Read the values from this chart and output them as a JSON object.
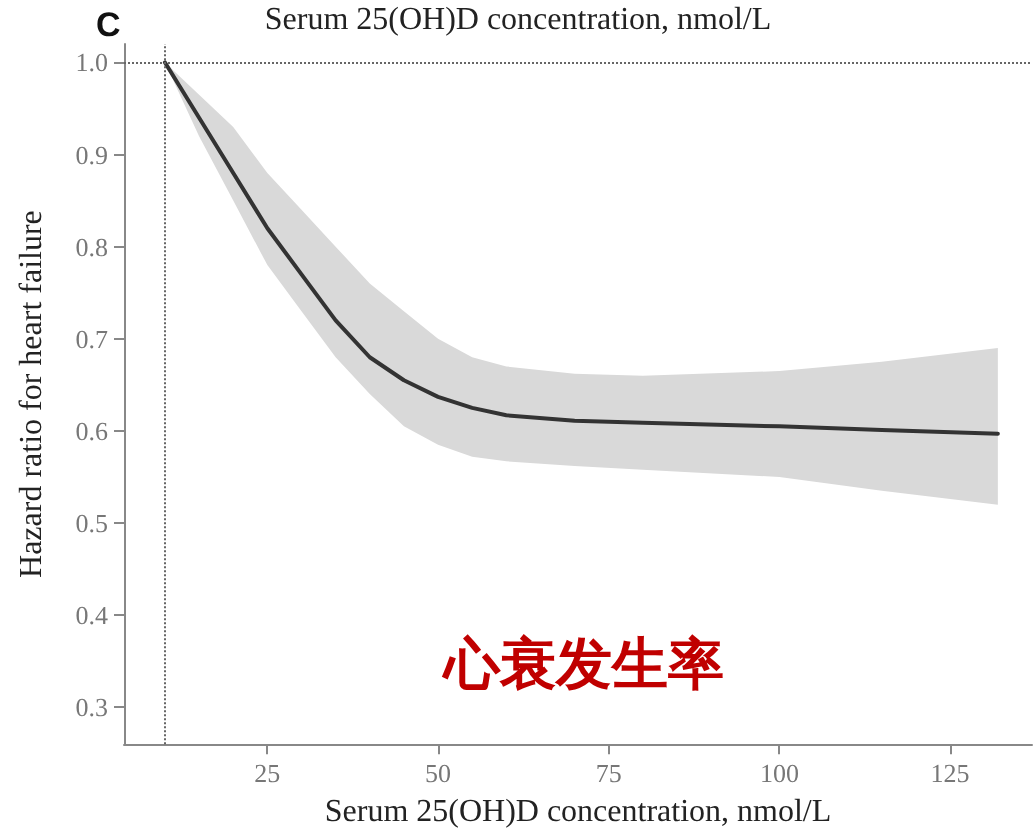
{
  "chart_data": {
    "type": "line",
    "xlabel": "Serum 25(OH)D concentration, nmol/L",
    "ylabel": "Hazard ratio for heart failure",
    "annotations": [
      "C",
      "Serum 25(OH)D concentration, nmol/L",
      "心衰发生率"
    ],
    "x": [
      10,
      15,
      20,
      25,
      30,
      35,
      40,
      45,
      50,
      55,
      60,
      70,
      80,
      100,
      115,
      132
    ],
    "series": [
      {
        "color": "#333333",
        "values": [
          1.0,
          0.94,
          0.88,
          0.82,
          0.77,
          0.72,
          0.68,
          0.655,
          0.637,
          0.625,
          0.617,
          0.611,
          0.609,
          0.605,
          0.601,
          0.597
        ],
        "lower": [
          1.0,
          0.92,
          0.85,
          0.78,
          0.73,
          0.68,
          0.64,
          0.605,
          0.585,
          0.572,
          0.567,
          0.562,
          0.558,
          0.55,
          0.535,
          0.52
        ],
        "upper": [
          1.0,
          0.965,
          0.93,
          0.88,
          0.84,
          0.8,
          0.76,
          0.73,
          0.7,
          0.68,
          0.67,
          0.662,
          0.66,
          0.665,
          0.675,
          0.69
        ]
      }
    ],
    "xlim": [
      4,
      137
    ],
    "xticks": [
      25,
      50,
      75,
      100,
      125
    ],
    "ylim": [
      0.26,
      1.02
    ],
    "yticks": [
      0.3,
      0.4,
      0.5,
      0.6,
      0.7,
      0.8,
      0.9,
      {
        "value": 1.0,
        "label": "1.0"
      }
    ],
    "ref_lines": [
      {
        "axis": "x",
        "value": 10,
        "line_style": "dotted",
        "color": "#666666"
      },
      {
        "axis": "y",
        "value": 1.0,
        "line_style": "dotted",
        "color": "#666666"
      }
    ],
    "grid": false,
    "marker": "none",
    "line_style": "solid"
  }
}
